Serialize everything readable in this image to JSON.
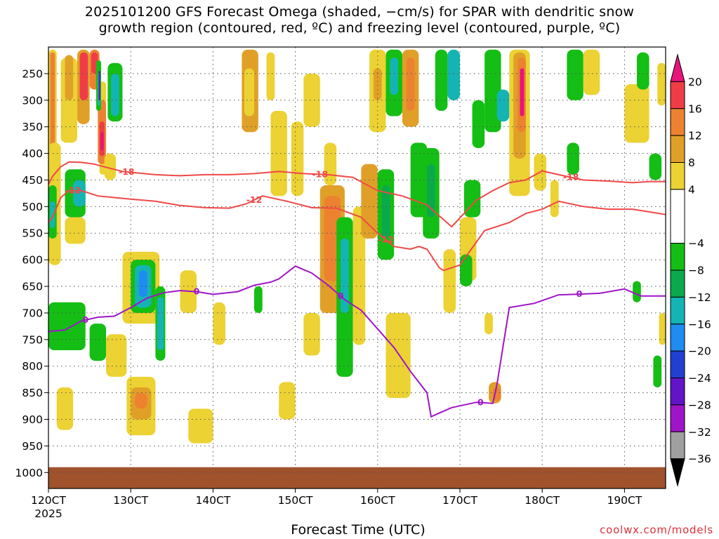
{
  "title": {
    "line1": "2025101200 GFS Forecast Omega (shaded, −cm/s) for SPAR with dendritic snow",
    "line2": "growth region (contoured, red, ºC) and freezing level (contoured, purple, ºC)"
  },
  "credit": "coolwx.com/models",
  "chart_data": {
    "type": "heatmap",
    "title": "2025101200 GFS Forecast Omega (shaded, −cm/s) for SPAR with dendritic snow growth region (contoured, red, ºC) and freezing level (contoured, purple, ºC)",
    "xlabel": "Forecast Time (UTC)",
    "x_ticks": [
      "120CT",
      "130CT",
      "140CT",
      "150CT",
      "160CT",
      "170CT",
      "180CT",
      "190CT"
    ],
    "x_tick_year": "2025",
    "x_range_day": [
      12,
      19.5
    ],
    "y_ticks": [
      250,
      300,
      350,
      400,
      450,
      500,
      550,
      600,
      650,
      700,
      750,
      800,
      850,
      900,
      950,
      1000
    ],
    "y_range_hPa": [
      200,
      1030
    ],
    "grid": true,
    "colorbar": {
      "labels": [
        "20",
        "16",
        "12",
        "8",
        "4",
        "−4",
        "−8",
        "−12",
        "−16",
        "−20",
        "−24",
        "−28",
        "−32",
        "−36"
      ],
      "bins": [
        {
          "range": [
            20,
            null
          ],
          "color": "#e8147a"
        },
        {
          "range": [
            16,
            20
          ],
          "color": "#f03c46"
        },
        {
          "range": [
            12,
            16
          ],
          "color": "#ec8230"
        },
        {
          "range": [
            8,
            12
          ],
          "color": "#e0a028"
        },
        {
          "range": [
            4,
            8
          ],
          "color": "#ecd232"
        },
        {
          "range": [
            -4,
            4
          ],
          "color": "#ffffff"
        },
        {
          "range": [
            -8,
            -4
          ],
          "color": "#14be14"
        },
        {
          "range": [
            -12,
            -8
          ],
          "color": "#0aaa4c"
        },
        {
          "range": [
            -16,
            -12
          ],
          "color": "#14b4b4"
        },
        {
          "range": [
            -20,
            -16
          ],
          "color": "#1e8cf0"
        },
        {
          "range": [
            -24,
            -20
          ],
          "color": "#2040d2"
        },
        {
          "range": [
            -28,
            -24
          ],
          "color": "#6414c8"
        },
        {
          "range": [
            -32,
            -28
          ],
          "color": "#a014c8"
        },
        {
          "range": [
            -36,
            -32
          ],
          "color": "#a0a0a0"
        },
        {
          "range": [
            null,
            -36
          ],
          "color": "#000000"
        }
      ]
    },
    "contours": [
      {
        "label": "-18",
        "color": "#f04848",
        "day": [
          12.0,
          12.05,
          12.15,
          12.25,
          12.4,
          12.55,
          12.7,
          12.9,
          13.1,
          13.3,
          13.6,
          13.9,
          14.2,
          14.5,
          14.8,
          15.1,
          15.4,
          15.7,
          16.0,
          16.3,
          16.6,
          16.9,
          17.2,
          17.4,
          17.6,
          17.8,
          18.0,
          18.2,
          18.5,
          18.8,
          19.1,
          19.3,
          19.5
        ],
        "hPa": [
          458,
          443,
          425,
          416,
          417,
          420,
          426,
          434,
          437,
          440,
          442,
          440,
          440,
          438,
          434,
          438,
          440,
          445,
          470,
          480,
          497,
          538,
          488,
          470,
          455,
          450,
          433,
          440,
          450,
          452,
          455,
          453,
          453
        ]
      },
      {
        "label": "-12",
        "color": "#f04848",
        "day": [
          12.0,
          12.05,
          12.15,
          12.25,
          12.4,
          12.6,
          12.8,
          13.0,
          13.3,
          13.6,
          13.9,
          14.2,
          14.4,
          14.6,
          14.9,
          15.2,
          15.5,
          15.8,
          16.0,
          16.2,
          16.4,
          16.5,
          16.6,
          16.75,
          16.8,
          17.0,
          17.3,
          17.6,
          17.8,
          18.0,
          18.2,
          18.5,
          18.8,
          19.1,
          19.3,
          19.5
        ],
        "hPa": [
          530,
          520,
          483,
          470,
          470,
          480,
          483,
          486,
          490,
          498,
          502,
          503,
          495,
          480,
          490,
          502,
          503,
          520,
          550,
          575,
          580,
          575,
          580,
          615,
          620,
          610,
          545,
          530,
          513,
          505,
          490,
          500,
          505,
          505,
          510,
          515
        ]
      },
      {
        "label": "0",
        "color": "#a014c8",
        "day": [
          12.0,
          12.2,
          12.4,
          12.6,
          12.8,
          13.0,
          13.2,
          13.4,
          13.6,
          13.8,
          14.0,
          14.3,
          14.5,
          14.7,
          14.8,
          15.0,
          15.2,
          15.4,
          15.6,
          15.8,
          16.0,
          16.2,
          16.4,
          16.6,
          16.65,
          16.9,
          17.2,
          17.4,
          17.45,
          17.6,
          17.9,
          18.2,
          18.4,
          18.7,
          19.0,
          19.2,
          19.5
        ],
        "hPa": [
          735,
          732,
          715,
          708,
          706,
          690,
          672,
          662,
          658,
          660,
          665,
          660,
          648,
          642,
          636,
          612,
          625,
          648,
          675,
          695,
          730,
          765,
          810,
          850,
          895,
          878,
          868,
          870,
          835,
          690,
          682,
          666,
          665,
          663,
          655,
          668,
          668
        ]
      }
    ]
  }
}
